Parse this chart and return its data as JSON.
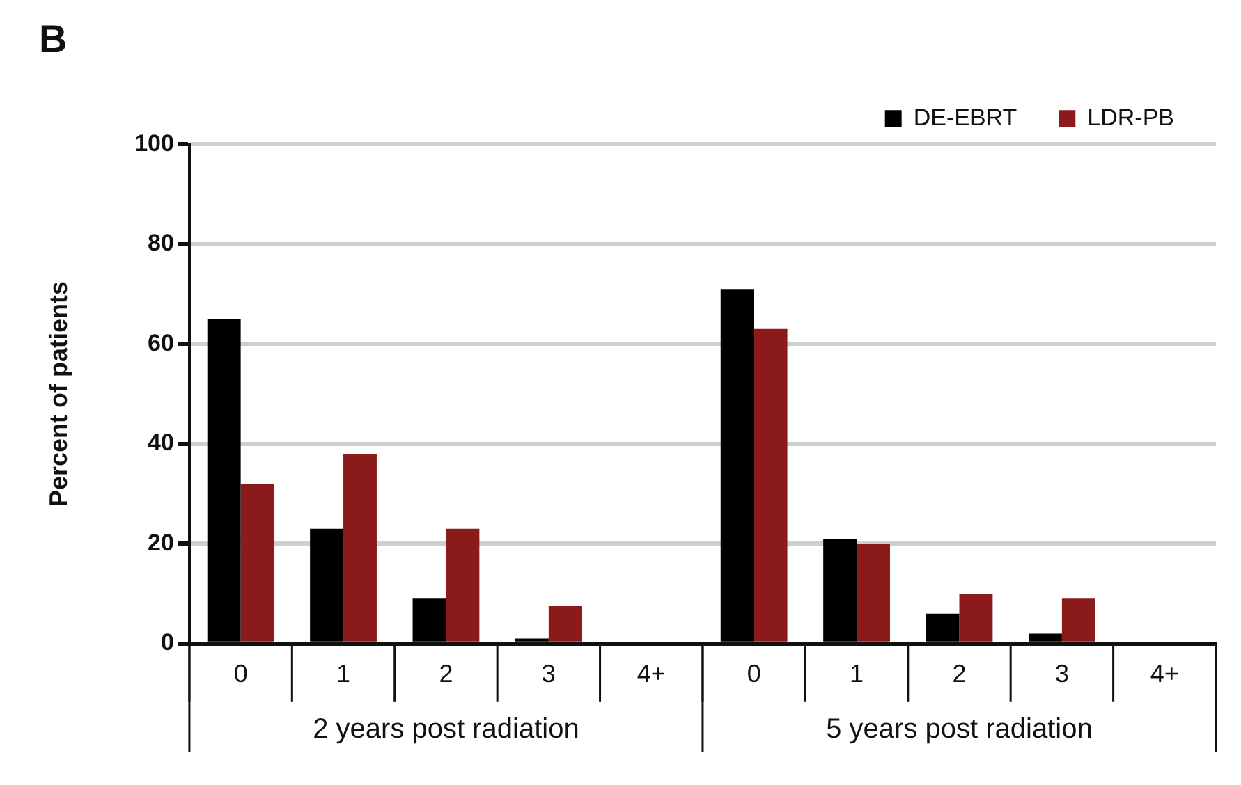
{
  "chart_data": {
    "type": "bar",
    "title": "B",
    "ylabel": "Percent of patients",
    "categories": [
      "0",
      "1",
      "2",
      "3",
      "4+",
      "0",
      "1",
      "2",
      "3",
      "4+"
    ],
    "series": [
      {
        "name": "DE-EBRT",
        "color": "#000000",
        "values": [
          65,
          23,
          9,
          1,
          0,
          71,
          21,
          6,
          2,
          0
        ]
      },
      {
        "name": "LDR-PB",
        "color": "#8b1a1a",
        "values": [
          32,
          38,
          23,
          7.5,
          0,
          63,
          20,
          10,
          9,
          0
        ]
      }
    ],
    "ylim": [
      0,
      100
    ],
    "yticks": [
      0,
      20,
      40,
      60,
      80,
      100
    ],
    "grid": "y",
    "legend": "top right",
    "annotations": [
      "2 years post radiation",
      "5 years post radiation"
    ]
  }
}
